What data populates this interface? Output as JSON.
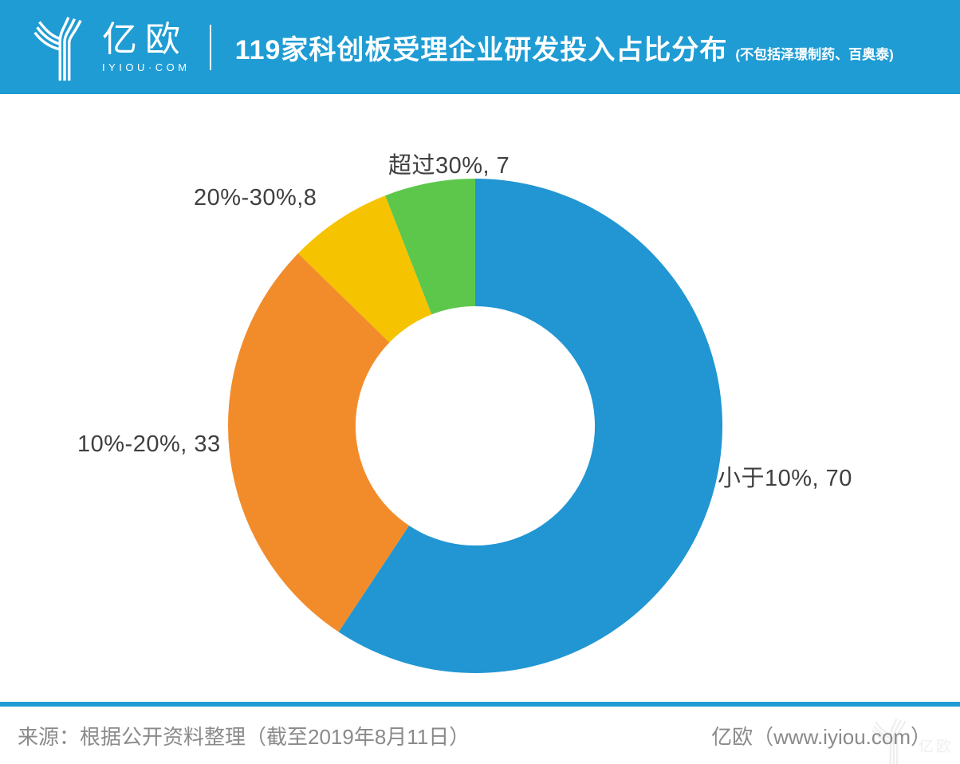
{
  "header": {
    "logo_brand": "亿欧",
    "logo_domain": "IYIOU·COM",
    "title": "119家科创板受理企业研发投入占比分布",
    "note": "(不包括泽璟制药、百奥泰)"
  },
  "chart_data": {
    "type": "pie",
    "shape": "donut",
    "title": "119家科创板受理企业研发投入占比分布",
    "direction": "clockwise",
    "start_angle_deg": 0,
    "inner_radius_ratio": 0.484,
    "total": 118,
    "legend_position": "none",
    "label_color": "#3f3f3f",
    "slices": [
      {
        "category": "小于10%",
        "value": 70,
        "label": "小于10%, 70",
        "color": "#2196d3"
      },
      {
        "category": "10%-20%",
        "value": 33,
        "label": "10%-20%, 33",
        "color": "#f28c2b"
      },
      {
        "category": "20%-30%",
        "value": 8,
        "label": "20%-30%,8",
        "color": "#f6c300"
      },
      {
        "category": "超过30%",
        "value": 7,
        "label": "超过30%, 7",
        "color": "#5dc74c"
      }
    ]
  },
  "footer": {
    "source": "来源：根据公开资料整理（截至2019年8月11日）",
    "brand": "亿欧（www.iyiou.com）",
    "watermark": "亿欧"
  },
  "colors": {
    "header_bg": "#1f9cd4",
    "divider": "#ffffff",
    "footer_rule": "#1f9cd4",
    "footer_text": "#8a8a8a"
  }
}
